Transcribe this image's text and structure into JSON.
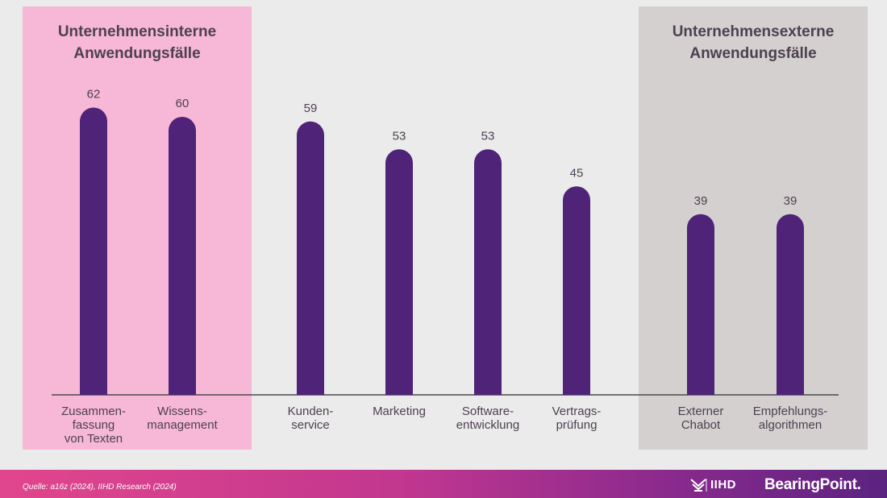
{
  "panels": {
    "internal_title": "Unternehmensinterne\nAnwendungsfälle",
    "external_title": "Unternehmensexterne\nAnwendungsfälle"
  },
  "chart_data": {
    "type": "bar",
    "categories": [
      "Zusammen-\nfassung\nvon Texten",
      "Wissens-\nmanagement",
      "Kunden-\nservice",
      "Marketing",
      "Software-\nentwicklung",
      "Vertrags-\nprüfung",
      "Externer\nChabot",
      "Empfehlungs-\nalgorithmen"
    ],
    "values": [
      62,
      60,
      59,
      53,
      53,
      45,
      39,
      39
    ],
    "groups": [
      "internal",
      "internal",
      "neutral",
      "neutral",
      "neutral",
      "neutral",
      "external",
      "external"
    ],
    "bar_color": "#4e2378",
    "value_labels": true,
    "grid": false
  },
  "footer": {
    "source": "Quelle: a16z (2024), IIHD Research (2024)",
    "logo_iihd": "IIHD",
    "logo_brand": "BearingPoint."
  },
  "colors": {
    "background": "#ebebeb",
    "internal_panel": "#f7b7d6",
    "external_panel": "#d3d0cf",
    "bar": "#4e2378",
    "footer_gradient_start": "#e1468d",
    "footer_gradient_end": "#5b2380"
  }
}
